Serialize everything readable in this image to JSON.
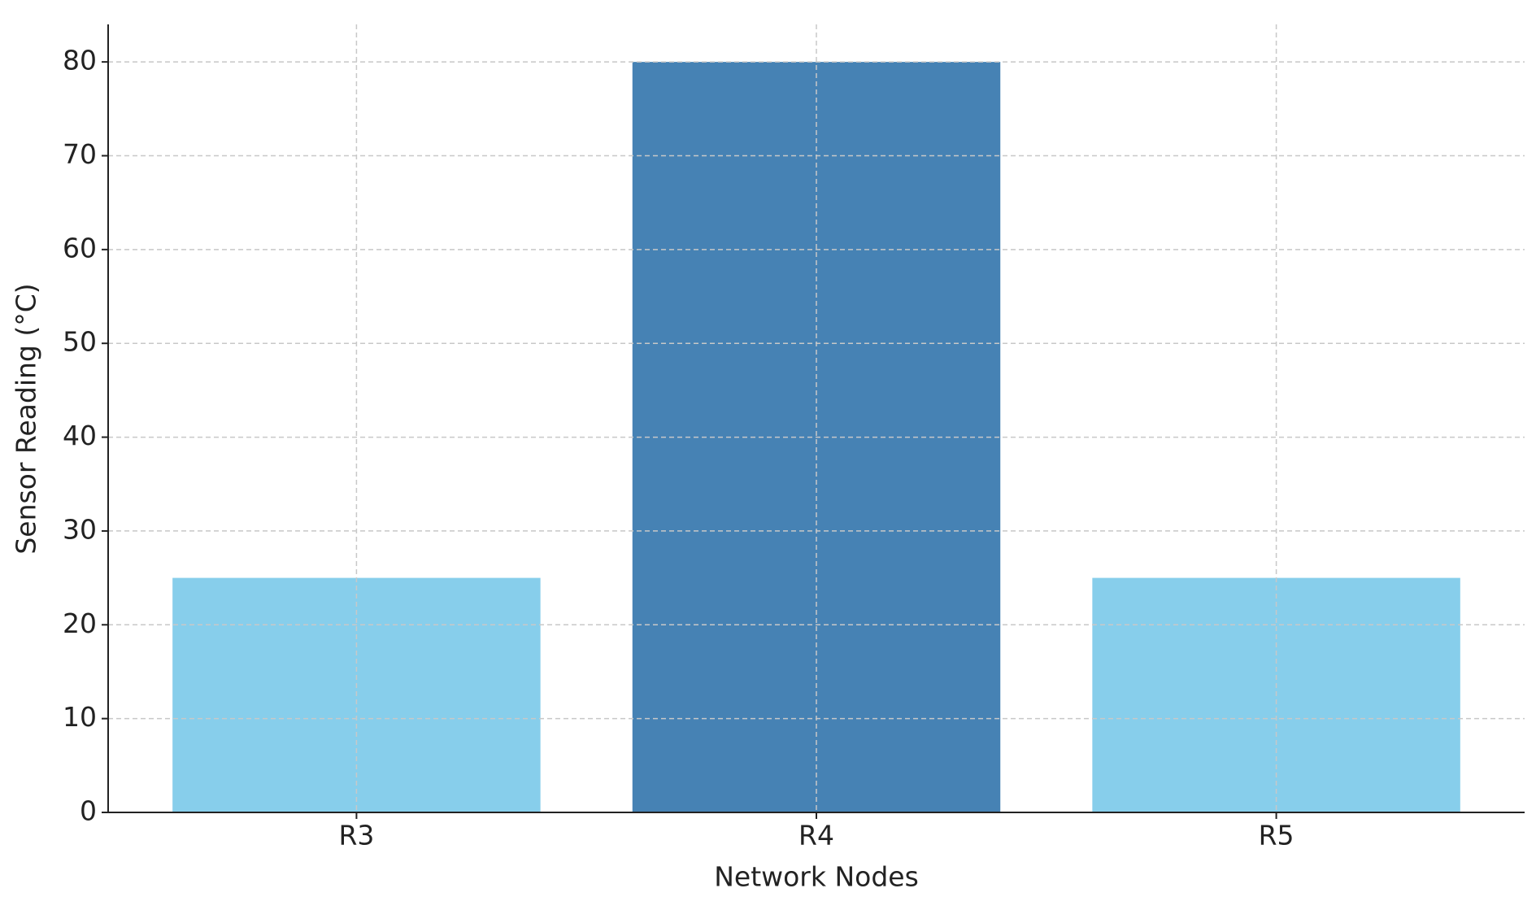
{
  "chart_data": {
    "type": "bar",
    "categories": [
      "R3",
      "R4",
      "R5"
    ],
    "values": [
      25,
      80,
      25
    ],
    "colors": [
      "#87ceeb",
      "#4682b4",
      "#87ceeb"
    ],
    "xlabel": "Network Nodes",
    "ylabel": "Sensor Reading (°C)",
    "ylim": [
      0,
      84
    ],
    "yticks": [
      0,
      10,
      20,
      30,
      40,
      50,
      60,
      70,
      80
    ],
    "grid": true
  }
}
